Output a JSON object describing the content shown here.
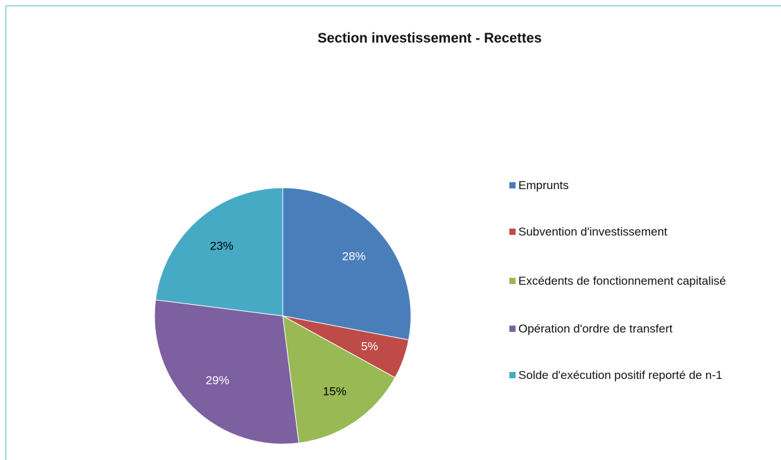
{
  "chart_data": {
    "type": "pie",
    "title": "Section investissement - Recettes",
    "categories": [
      "Emprunts",
      "Subvention d'investissement",
      "Excédents de fonctionnement capitalisé",
      "Opération d'ordre de transfert",
      "Solde d'exécution positif reporté de n-1"
    ],
    "values": [
      28,
      5,
      15,
      29,
      23
    ],
    "value_labels": [
      "28%",
      "5%",
      "15%",
      "29%",
      "23%"
    ],
    "colors": [
      "#4a7ebb",
      "#be4b48",
      "#98b954",
      "#7d60a0",
      "#46aac5"
    ],
    "label_colors": [
      "#ffffff",
      "#ffffff",
      "#000000",
      "#ffffff",
      "#000000"
    ],
    "legend": "right"
  }
}
